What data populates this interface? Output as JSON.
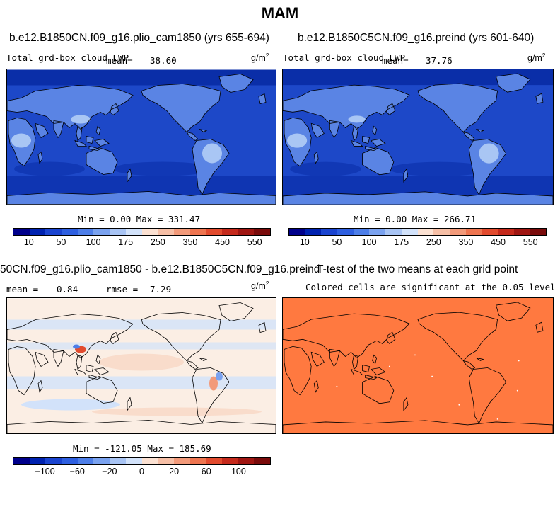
{
  "figure_title": "MAM",
  "panels": {
    "p1": {
      "run_title": "b.e12.B1850CN.f09_g16.plio_cam1850 (yrs 655-694)",
      "variable": "Total grd-box cloud LWP",
      "mean_label": "mean=",
      "mean_value": "38.60",
      "units": "g/m",
      "units_exp": "2",
      "stats": "Min =   0.00 Max = 331.47",
      "cmap": "abs"
    },
    "p2": {
      "run_title": "b.e12.B1850C5CN.f09_g16.preind (yrs 601-640)",
      "variable": "Total grd-box cloud LWP",
      "mean_label": "mean=",
      "mean_value": "37.76",
      "units": "g/m",
      "units_exp": "2",
      "stats": "Min =   0.00 Max = 266.71",
      "cmap": "abs"
    },
    "p3": {
      "run_title": "50CN.f09_g16.plio_cam1850 - b.e12.B1850C5CN.f09_g16.preind",
      "mean_label": "mean =",
      "mean_value": "0.84",
      "rmse_label": "rmse =",
      "rmse_value": "7.29",
      "units": "g/m",
      "units_exp": "2",
      "stats": "Min = -121.05 Max = 185.69",
      "cmap": "diff"
    },
    "p4": {
      "run_title": "T-test of the two means at each grid point",
      "subtitle": "Colored cells are significant at the 0.05 level"
    }
  },
  "colorbars": {
    "abs": {
      "colors": [
        "#00008b",
        "#0022b0",
        "#1a44d0",
        "#2e5fe0",
        "#4d7ee8",
        "#7aa2ef",
        "#a8c4f4",
        "#d2e2fa",
        "#fbe1d2",
        "#f6bfa6",
        "#f29a7a",
        "#ee7550",
        "#e24b2e",
        "#c52a1c",
        "#a01612",
        "#7a0b0b"
      ],
      "ticks": [
        "10",
        "50",
        "100",
        "175",
        "250",
        "350",
        "450",
        "550"
      ]
    },
    "diff": {
      "colors": [
        "#00008b",
        "#0022b0",
        "#1a44d0",
        "#2e5fe0",
        "#4d7ee8",
        "#7aa2ef",
        "#a8c4f4",
        "#d2e2fa",
        "#fbe1d2",
        "#f6bfa6",
        "#f29a7a",
        "#ee7550",
        "#e24b2e",
        "#c52a1c",
        "#a01612",
        "#7a0b0b"
      ],
      "ticks": [
        "−100",
        "−60",
        "−20",
        "0",
        "20",
        "60",
        "100"
      ]
    }
  },
  "colors": {
    "ocean_abs": "#1d48c8",
    "ocean_abs_dark": "#0a2ea8",
    "land_abs": "#5a84e4",
    "land_abs_bright": "#a9c6f4",
    "diff_bg": "#fbeee4",
    "diff_band_blue": "#d2e2fa",
    "diff_band_pink": "#f9dccb",
    "ttest_fill": "#ff7940",
    "coast": "#000000"
  }
}
